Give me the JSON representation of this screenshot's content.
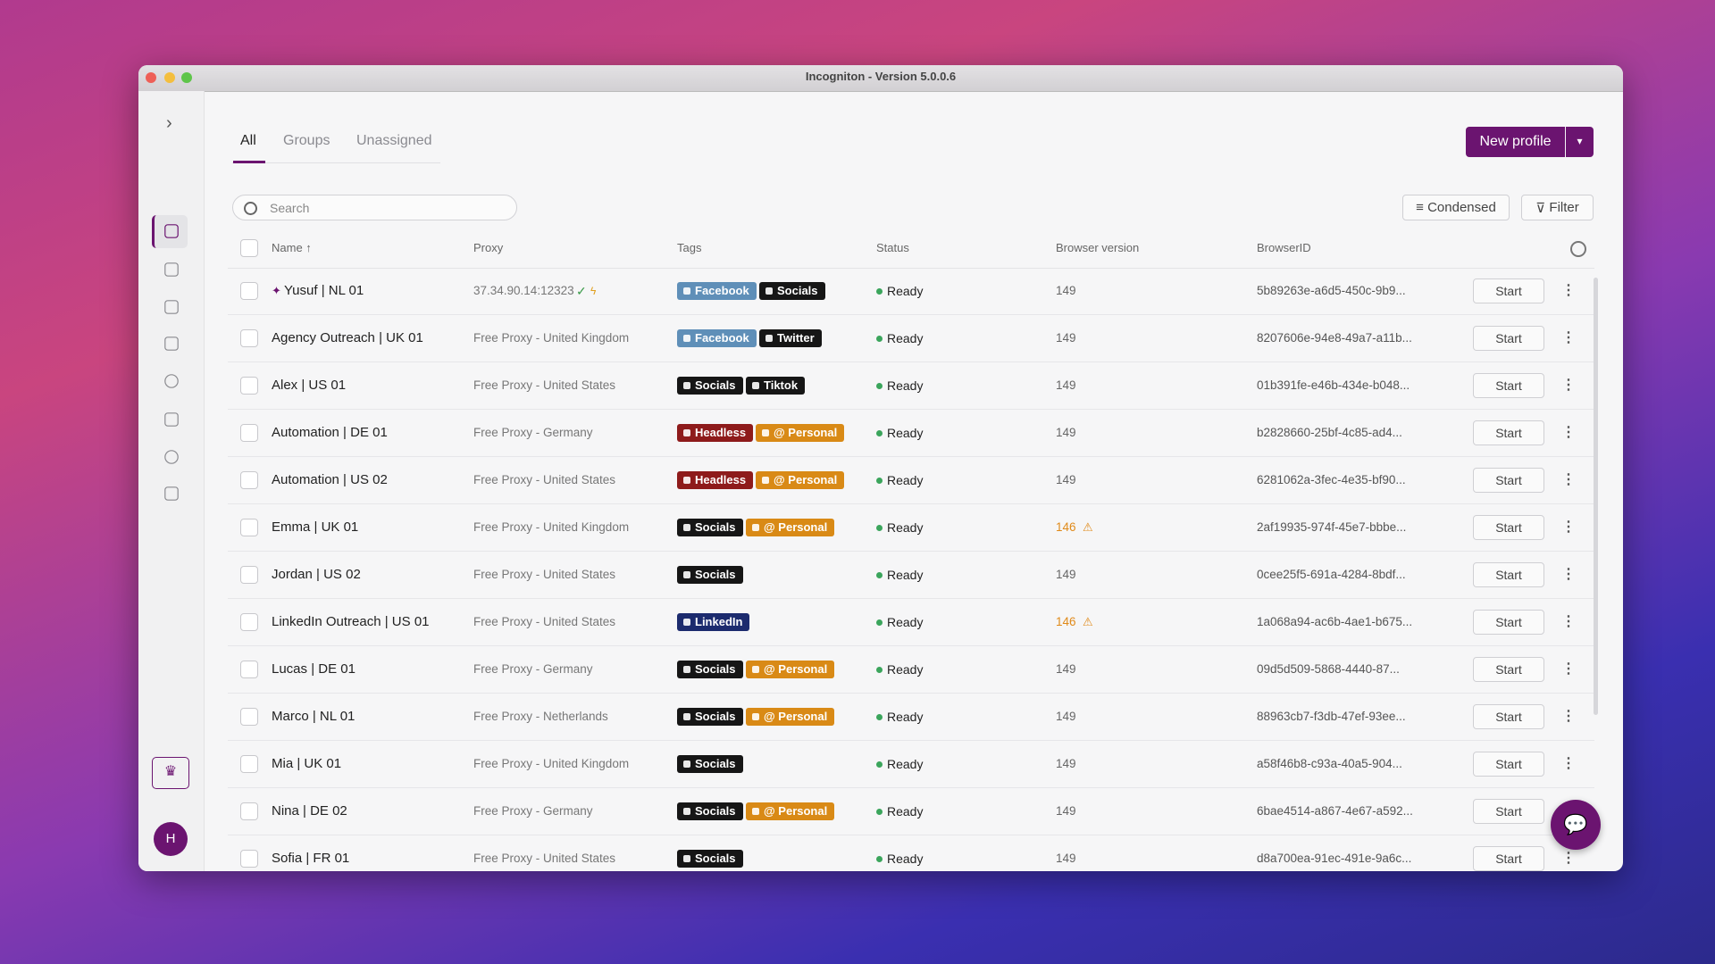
{
  "window": {
    "title": "Incogniton - Version 5.0.0.6"
  },
  "tabs": [
    "All",
    "Groups",
    "Unassigned"
  ],
  "buttons": {
    "new_profile": "New profile",
    "condensed": "Condensed",
    "filter": "Filter",
    "start": "Start"
  },
  "search": {
    "placeholder": "Search"
  },
  "avatar": "H",
  "table": {
    "columns": [
      "Name ↑",
      "Proxy",
      "Tags",
      "Status",
      "Browser version",
      "BrowserID"
    ],
    "rows": [
      {
        "name": "Yusuf | NL 01",
        "pinned": true,
        "proxy": "37.34.90.14:12323",
        "proxy_ok": true,
        "tags": [
          {
            "label": "Facebook",
            "color": "#5f8fb8"
          },
          {
            "label": "Socials",
            "color": "#161616"
          }
        ],
        "status": "Ready",
        "version": 149,
        "id": "5b89263e-a6d5-450c-9b9..."
      },
      {
        "name": "Agency Outreach | UK 01",
        "proxy": "Free Proxy - United Kingdom",
        "tags": [
          {
            "label": "Facebook",
            "color": "#5f8fb8"
          },
          {
            "label": "Twitter",
            "color": "#161616"
          }
        ],
        "status": "Ready",
        "version": 149,
        "id": "8207606e-94e8-49a7-a11b..."
      },
      {
        "name": "Alex | US 01",
        "proxy": "Free Proxy - United States",
        "tags": [
          {
            "label": "Socials",
            "color": "#161616"
          },
          {
            "label": "Tiktok",
            "color": "#161616"
          }
        ],
        "status": "Ready",
        "version": 149,
        "id": "01b391fe-e46b-434e-b048..."
      },
      {
        "name": "Automation | DE 01",
        "proxy": "Free Proxy - Germany",
        "tags": [
          {
            "label": "Headless",
            "color": "#8e1b1b"
          },
          {
            "label": "@ Personal",
            "color": "#d98a16"
          }
        ],
        "status": "Ready",
        "version": 149,
        "id": "b2828660-25bf-4c85-ad4..."
      },
      {
        "name": "Automation | US 02",
        "proxy": "Free Proxy - United States",
        "tags": [
          {
            "label": "Headless",
            "color": "#8e1b1b"
          },
          {
            "label": "@ Personal",
            "color": "#d98a16"
          }
        ],
        "status": "Ready",
        "version": 149,
        "id": "6281062a-3fec-4e35-bf90..."
      },
      {
        "name": "Emma | UK 01",
        "proxy": "Free Proxy - United Kingdom",
        "tags": [
          {
            "label": "Socials",
            "color": "#161616"
          },
          {
            "label": "@ Personal",
            "color": "#d98a16"
          }
        ],
        "status": "Ready",
        "version": 146,
        "id": "2af19935-974f-45e7-bbbe..."
      },
      {
        "name": "Jordan | US 02",
        "proxy": "Free Proxy - United States",
        "tags": [
          {
            "label": "Socials",
            "color": "#161616"
          }
        ],
        "status": "Ready",
        "version": 149,
        "id": "0cee25f5-691a-4284-8bdf..."
      },
      {
        "name": "LinkedIn Outreach | US 01",
        "proxy": "Free Proxy - United States",
        "tags": [
          {
            "label": "LinkedIn",
            "color": "#1c2b6e"
          }
        ],
        "status": "Ready",
        "version": 146,
        "id": "1a068a94-ac6b-4ae1-b675..."
      },
      {
        "name": "Lucas | DE 01",
        "proxy": "Free Proxy - Germany",
        "tags": [
          {
            "label": "Socials",
            "color": "#161616"
          },
          {
            "label": "@ Personal",
            "color": "#d98a16"
          }
        ],
        "status": "Ready",
        "version": 149,
        "id": "09d5d509-5868-4440-87..."
      },
      {
        "name": "Marco | NL 01",
        "proxy": "Free Proxy - Netherlands",
        "tags": [
          {
            "label": "Socials",
            "color": "#161616"
          },
          {
            "label": "@ Personal",
            "color": "#d98a16"
          }
        ],
        "status": "Ready",
        "version": 149,
        "id": "88963cb7-f3db-47ef-93ee..."
      },
      {
        "name": "Mia | UK 01",
        "proxy": "Free Proxy - United Kingdom",
        "tags": [
          {
            "label": "Socials",
            "color": "#161616"
          }
        ],
        "status": "Ready",
        "version": 149,
        "id": "a58f46b8-c93a-40a5-904..."
      },
      {
        "name": "Nina | DE 02",
        "proxy": "Free Proxy - Germany",
        "tags": [
          {
            "label": "Socials",
            "color": "#161616"
          },
          {
            "label": "@ Personal",
            "color": "#d98a16"
          }
        ],
        "status": "Ready",
        "version": 149,
        "id": "6bae4514-a867-4e67-a592..."
      },
      {
        "name": "Sofia | FR 01",
        "proxy": "Free Proxy - United States",
        "tags": [
          {
            "label": "Socials",
            "color": "#161616"
          }
        ],
        "status": "Ready",
        "version": 149,
        "id": "d8a700ea-91ec-491e-9a6c..."
      }
    ]
  }
}
